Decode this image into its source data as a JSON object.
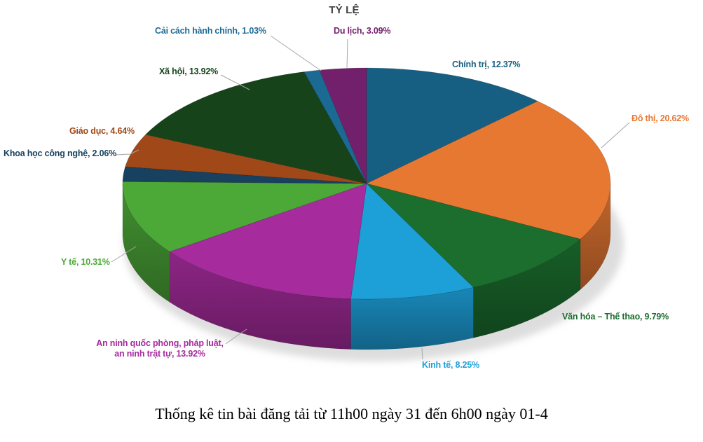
{
  "chart_data": {
    "type": "pie",
    "projection": "3d",
    "title": "TỶ LỆ",
    "caption": "Thống kê tin bài đăng tải từ 11h00 ngày 31 đến 6h00 ngày 01-4",
    "start_at": "top",
    "direction": "clockwise",
    "legend": "none",
    "label_format": "{name}, {value}%",
    "leader_line_color": "#a6a6a6",
    "title_color": "#3f3f3f",
    "slices": [
      {
        "name": "Chính trị",
        "value": 12.37,
        "label_text": "Chính trị, 12.37%",
        "color": "#175F82"
      },
      {
        "name": "Đô thị",
        "value": 20.62,
        "label_text": "Đô thị, 20.62%",
        "color": "#E67832"
      },
      {
        "name": "Văn hóa – Thể thao",
        "value": 9.79,
        "label_text": "Văn hóa – Thể thao, 9.79%",
        "color": "#1B6E2E"
      },
      {
        "name": "Kinh tế",
        "value": 8.25,
        "label_text": "Kinh tế, 8.25%",
        "color": "#1D9FD8"
      },
      {
        "name": "An ninh quốc phòng, pháp luật, an ninh trật tự",
        "value": 13.92,
        "label_text": "An ninh quốc phòng, pháp luật, an ninh trật tự, 13.92%",
        "color": "#A62B9D"
      },
      {
        "name": "Y tế",
        "value": 10.31,
        "label_text": "Y tế, 10.31%",
        "color": "#4CA938"
      },
      {
        "name": "Khoa học công nghệ",
        "value": 2.06,
        "label_text": "Khoa học công nghệ, 2.06%",
        "color": "#17415F"
      },
      {
        "name": "Giáo dục",
        "value": 4.64,
        "label_text": "Giáo dục, 4.64%",
        "color": "#A04818"
      },
      {
        "name": "Xã hội",
        "value": 13.92,
        "label_text": "Xã hội, 13.92%",
        "color": "#17431A"
      },
      {
        "name": "Cải cách hành chính",
        "value": 1.03,
        "label_text": "Cải cách hành chính, 1.03%",
        "color": "#1B6A94"
      },
      {
        "name": "Du lịch",
        "value": 3.09,
        "label_text": "Du lịch, 3.09%",
        "color": "#73206C"
      }
    ]
  }
}
